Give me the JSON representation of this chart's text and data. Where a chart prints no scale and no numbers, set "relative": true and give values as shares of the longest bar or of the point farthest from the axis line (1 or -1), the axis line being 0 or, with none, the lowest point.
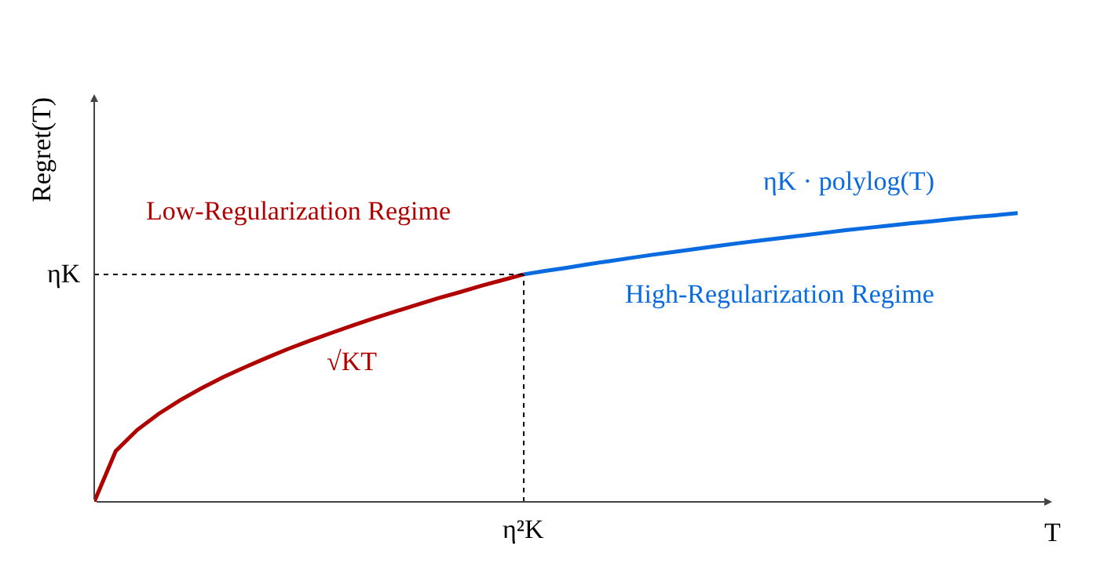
{
  "chart_data": {
    "type": "line",
    "relative": true,
    "xlabel": "T",
    "ylabel": "Regret(T)",
    "categories": [
      null,
      null,
      null,
      null,
      null,
      null,
      null,
      null,
      null,
      null,
      null,
      null,
      null,
      null,
      null,
      null,
      null,
      null,
      null,
      null,
      null,
      null,
      null,
      null,
      null,
      null,
      null,
      null,
      null,
      null,
      null,
      null,
      null,
      null,
      null,
      null,
      null,
      null,
      null,
      null,
      null,
      null,
      null,
      null
    ],
    "series": [
      {
        "color": "#b00000",
        "values": [
          0,
          0.176,
          0.249,
          0.305,
          0.352,
          0.394,
          0.432,
          0.466,
          0.498,
          0.529,
          0.557,
          0.584,
          0.61,
          0.635,
          0.659,
          0.682,
          0.705,
          0.726,
          0.748,
          0.768,
          0.788,
          null,
          null,
          null,
          null,
          null,
          null,
          null,
          null,
          null,
          null,
          null,
          null,
          null,
          null,
          null,
          null,
          null,
          null,
          null,
          null,
          null,
          null,
          null
        ]
      },
      {
        "color": "#0a6be0",
        "values": [
          null,
          null,
          null,
          null,
          null,
          null,
          null,
          null,
          null,
          null,
          null,
          null,
          null,
          null,
          null,
          null,
          null,
          null,
          null,
          null,
          0.788,
          0.8,
          0.811,
          0.823,
          0.834,
          0.845,
          0.856,
          0.866,
          0.876,
          0.886,
          0.896,
          0.905,
          0.914,
          0.923,
          0.932,
          0.941,
          0.949,
          0.957,
          0.965,
          0.972,
          0.98,
          0.987,
          0.993,
          1
        ]
      }
    ],
    "ref_lines": [
      {
        "axis": "y",
        "value": 0.788,
        "label": "ηK",
        "color": "#000000",
        "line_style": "dotted"
      }
    ],
    "annotations": [
      "Low-Regularization Regime",
      "√KT",
      "ηK · polylog(T)",
      "High-Regularization Regime",
      "η²K"
    ]
  }
}
